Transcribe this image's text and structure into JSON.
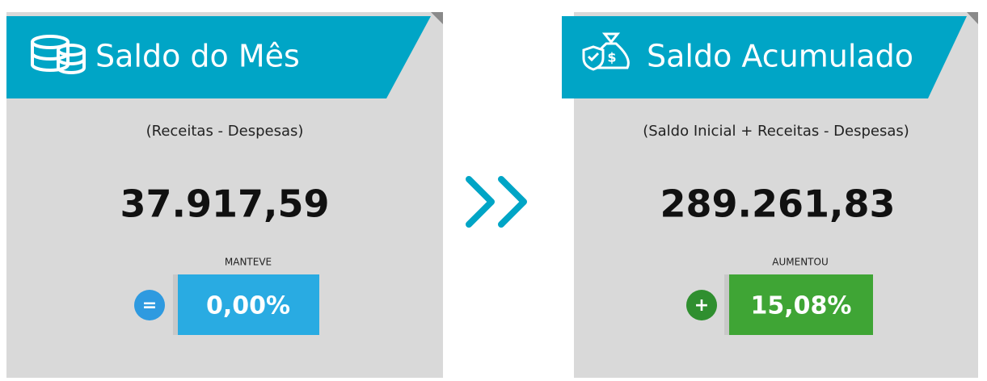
{
  "cards": [
    {
      "title": "Saldo do Mês",
      "subtitle": "(Receitas - Despesas)",
      "value": "37.917,59",
      "status": "MANTEVE",
      "sign": "=",
      "change": "0,00%"
    },
    {
      "title": "Saldo Acumulado",
      "subtitle": "(Saldo Inicial + Receitas - Despesas)",
      "value": "289.261,83",
      "status": "AUMENTOU",
      "sign": "+",
      "change": "15,08%"
    }
  ]
}
